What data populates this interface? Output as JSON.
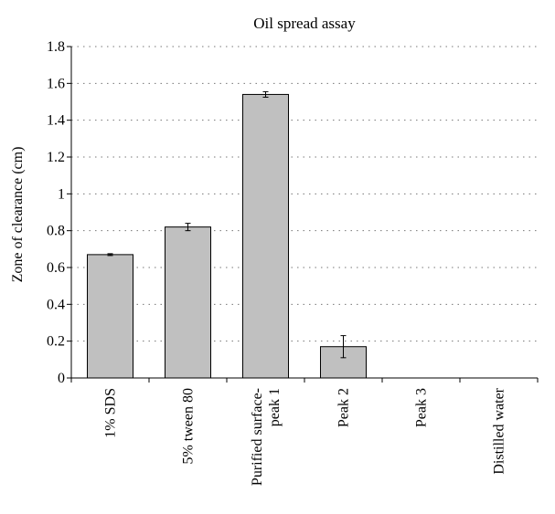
{
  "chart_data": {
    "type": "bar",
    "title": "Oil spread assay",
    "xlabel": "",
    "ylabel": "Zone of clearance (cm)",
    "ylim": [
      0,
      1.8
    ],
    "yticks": [
      0,
      0.2,
      0.4,
      0.6,
      0.8,
      1,
      1.2,
      1.4,
      1.6,
      1.8
    ],
    "ytick_labels": [
      "0",
      "0.2",
      "0.4",
      "0.6",
      "0.8",
      "1",
      "1.2",
      "1.4",
      "1.6",
      "1.8"
    ],
    "grid": "horizontal dotted",
    "bar_color": "#c0c0c0",
    "categories": [
      [
        "1% SDS"
      ],
      [
        "5% tween 80"
      ],
      [
        "Purified surface-",
        "peak 1"
      ],
      [
        "Peak 2"
      ],
      [
        "Peak 3"
      ],
      [
        "Distilled water"
      ]
    ],
    "values": [
      0.67,
      0.82,
      1.54,
      0.17,
      0,
      0
    ],
    "errors": [
      0.005,
      0.02,
      0.015,
      0.06,
      0,
      0
    ]
  }
}
